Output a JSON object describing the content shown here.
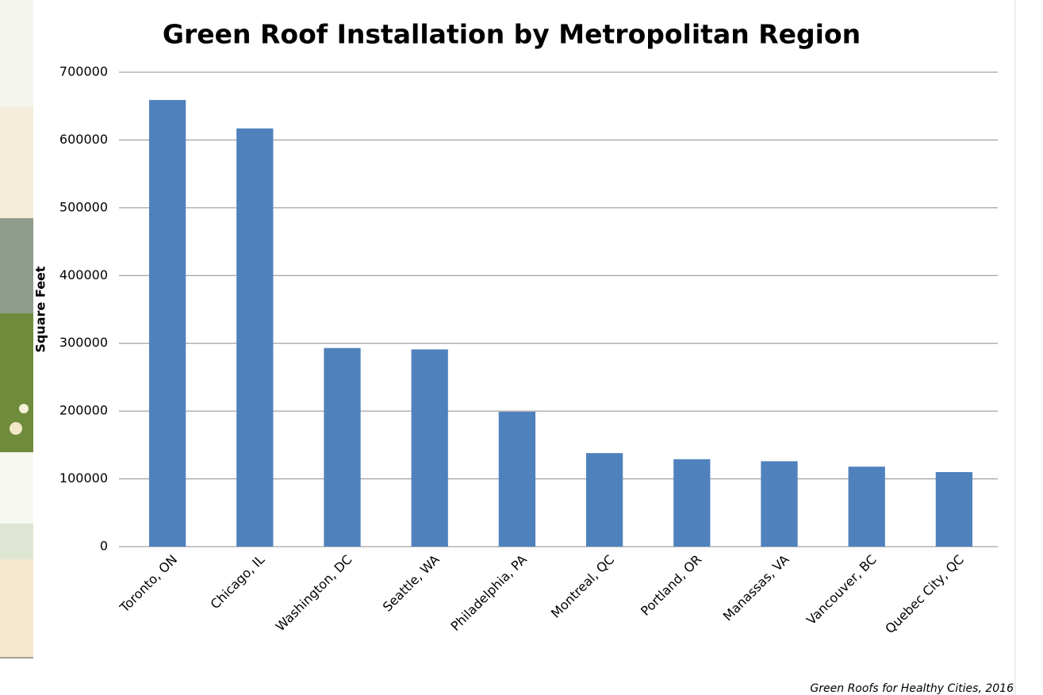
{
  "chart_data": {
    "type": "bar",
    "title": "Green Roof Installation by Metropolitan Region",
    "y_label": "Square Feet",
    "source": "Green Roofs for Healthy Cities, 2016",
    "categories": [
      "Toronto, ON",
      "Chicago, IL",
      "Washington, DC",
      "Seattle, WA",
      "Philadelphia, PA",
      "Montreal, QC",
      "Portland, OR",
      "Manassas, VA",
      "Vancouver, BC",
      "Quebec City, QC"
    ],
    "values": [
      659000,
      617000,
      293000,
      291000,
      199000,
      138000,
      129000,
      126000,
      118000,
      110000
    ],
    "color": "#4f81bd",
    "ylim": [
      0,
      700000
    ],
    "yticks": [
      0,
      100000,
      200000,
      300000,
      400000,
      500000,
      600000,
      700000
    ],
    "grid": true
  }
}
